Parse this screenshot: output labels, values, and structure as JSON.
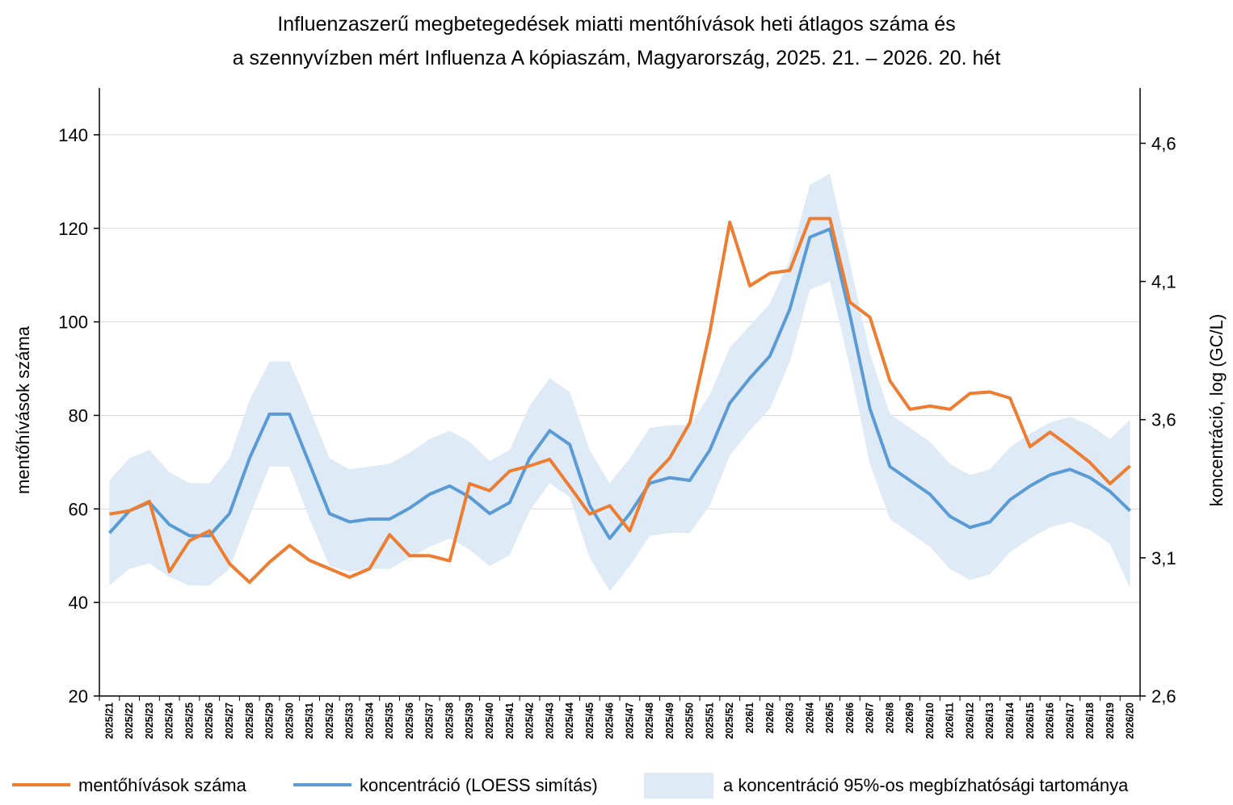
{
  "chart_data": {
    "type": "line",
    "title": [
      "Influenzaszerű megbetegedések miatti mentőhívások heti átlagos száma és",
      "a szennyvízben mért Influenza A kópiaszám, Magyarország, 2025. 21. – 2026. 20. hét"
    ],
    "ylabel_left": "mentőhívások száma",
    "ylabel_right": "koncentráció, log (GC/L)",
    "ylim_left": [
      20,
      150
    ],
    "yticks_left": [
      20,
      40,
      60,
      80,
      100,
      120,
      140
    ],
    "ytick_labels_left": [
      "20",
      "40",
      "60",
      "80",
      "100",
      "120",
      "140"
    ],
    "ylim_right": [
      2.6,
      4.8
    ],
    "yticks_right": [
      2.6,
      3.1,
      3.6,
      4.1,
      4.6
    ],
    "ytick_labels_right": [
      "2,6",
      "3,1",
      "3,6",
      "4,1",
      "4,6"
    ],
    "grid": true,
    "legend_position": "bottom",
    "categories": [
      "2025/21",
      "2025/22",
      "2025/23",
      "2025/24",
      "2025/25",
      "2025/26",
      "2025/27",
      "2025/28",
      "2025/29",
      "2025/30",
      "2025/31",
      "2025/32",
      "2025/33",
      "2025/34",
      "2025/35",
      "2025/36",
      "2025/37",
      "2025/38",
      "2025/39",
      "2025/40",
      "2025/41",
      "2025/42",
      "2025/43",
      "2025/44",
      "2025/45",
      "2025/46",
      "2025/47",
      "2025/48",
      "2025/49",
      "2025/50",
      "2025/51",
      "2025/52",
      "2026/1",
      "2026/2",
      "2026/3",
      "2026/4",
      "2026/5",
      "2026/6",
      "2026/7",
      "2026/8",
      "2026/9",
      "2026/10",
      "2026/11",
      "2026/12",
      "2026/13",
      "2026/14",
      "2026/15",
      "2026/16",
      "2026/17",
      "2026/18",
      "2026/19",
      "2026/20"
    ],
    "series": [
      {
        "name": "mentőhívások száma",
        "axis": "left",
        "color": "#ED7D31",
        "values": [
          58.9,
          59.6,
          61.6,
          46.6,
          53.2,
          55.3,
          48.3,
          44.3,
          48.6,
          52.2,
          49.0,
          47.2,
          45.4,
          47.2,
          54.5,
          50.0,
          50.0,
          48.9,
          65.4,
          63.9,
          68.1,
          69.2,
          70.6,
          64.8,
          58.9,
          60.7,
          55.3,
          66.4,
          70.9,
          78.4,
          97.8,
          121.3,
          107.7,
          110.4,
          111.0,
          122.1,
          122.1,
          104.2,
          101.0,
          87.4,
          81.3,
          82.0,
          81.3,
          84.7,
          85.0,
          83.7,
          73.3,
          76.4,
          73.3,
          69.9,
          65.4,
          69.2
        ]
      },
      {
        "name": "koncentráció (LOESS simítás)",
        "axis": "right",
        "color": "#5B9BD5",
        "values": [
          3.19,
          3.27,
          3.3,
          3.22,
          3.18,
          3.18,
          3.26,
          3.46,
          3.62,
          3.62,
          3.44,
          3.26,
          3.23,
          3.24,
          3.24,
          3.28,
          3.33,
          3.36,
          3.32,
          3.26,
          3.3,
          3.46,
          3.56,
          3.51,
          3.29,
          3.17,
          3.26,
          3.37,
          3.39,
          3.38,
          3.49,
          3.66,
          3.75,
          3.83,
          4.0,
          4.26,
          4.29,
          3.98,
          3.64,
          3.43,
          3.38,
          3.33,
          3.25,
          3.21,
          3.23,
          3.31,
          3.36,
          3.4,
          3.42,
          3.39,
          3.34,
          3.27
        ]
      },
      {
        "name": "a koncentráció 95%-os megbízhatósági tartománya",
        "axis": "right",
        "type": "area",
        "color": "#DEEBF7",
        "lower": [
          3.0,
          3.06,
          3.08,
          3.03,
          3.0,
          3.0,
          3.06,
          3.25,
          3.43,
          3.43,
          3.24,
          3.07,
          3.05,
          3.06,
          3.06,
          3.1,
          3.14,
          3.17,
          3.13,
          3.07,
          3.11,
          3.27,
          3.37,
          3.32,
          3.1,
          2.98,
          3.07,
          3.18,
          3.19,
          3.19,
          3.29,
          3.47,
          3.56,
          3.64,
          3.81,
          4.07,
          4.1,
          3.79,
          3.44,
          3.24,
          3.19,
          3.14,
          3.06,
          3.02,
          3.04,
          3.12,
          3.17,
          3.21,
          3.23,
          3.2,
          3.15,
          2.99
        ],
        "upper": [
          3.38,
          3.46,
          3.49,
          3.41,
          3.37,
          3.37,
          3.46,
          3.67,
          3.81,
          3.81,
          3.64,
          3.46,
          3.42,
          3.43,
          3.44,
          3.48,
          3.53,
          3.56,
          3.52,
          3.45,
          3.49,
          3.65,
          3.75,
          3.7,
          3.49,
          3.37,
          3.46,
          3.57,
          3.58,
          3.58,
          3.69,
          3.86,
          3.94,
          4.02,
          4.18,
          4.45,
          4.49,
          4.17,
          3.84,
          3.62,
          3.57,
          3.52,
          3.44,
          3.4,
          3.42,
          3.5,
          3.55,
          3.59,
          3.61,
          3.58,
          3.53,
          3.6
        ]
      }
    ]
  },
  "legend": {
    "items": [
      {
        "label": "mentőhívások száma",
        "color": "#ED7D31",
        "kind": "line"
      },
      {
        "label": "koncentráció (LOESS simítás)",
        "color": "#5B9BD5",
        "kind": "line"
      },
      {
        "label": "a koncentráció 95%-os megbízhatósági tartománya",
        "color": "#DEEBF7",
        "kind": "area"
      }
    ]
  }
}
